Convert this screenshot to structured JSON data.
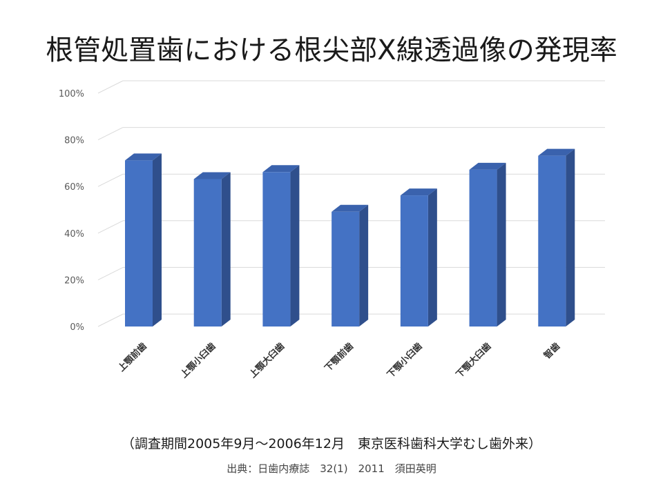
{
  "title": "根管処置歯における根尖部X線透過像の発現率",
  "chart_data": {
    "type": "bar",
    "categories": [
      "上顎前歯",
      "上顎小臼歯",
      "上顎大臼歯",
      "下顎前歯",
      "下顎小臼歯",
      "下顎大臼歯",
      "智歯"
    ],
    "values": [
      70,
      62,
      65,
      48,
      55,
      66,
      72
    ],
    "ylim": [
      0,
      100
    ],
    "yticks": [
      "0%",
      "20%",
      "40%",
      "60%",
      "80%",
      "100%"
    ],
    "grid": true,
    "colors": {
      "front": "#4472c4",
      "side": "#2f4f8c",
      "top": "#3a62ad"
    }
  },
  "note": "（調査期間2005年9月～2006年12月　東京医科歯科大学むし歯外来）",
  "source": "出典：日歯内療誌　32(1)　2011　須田英明"
}
